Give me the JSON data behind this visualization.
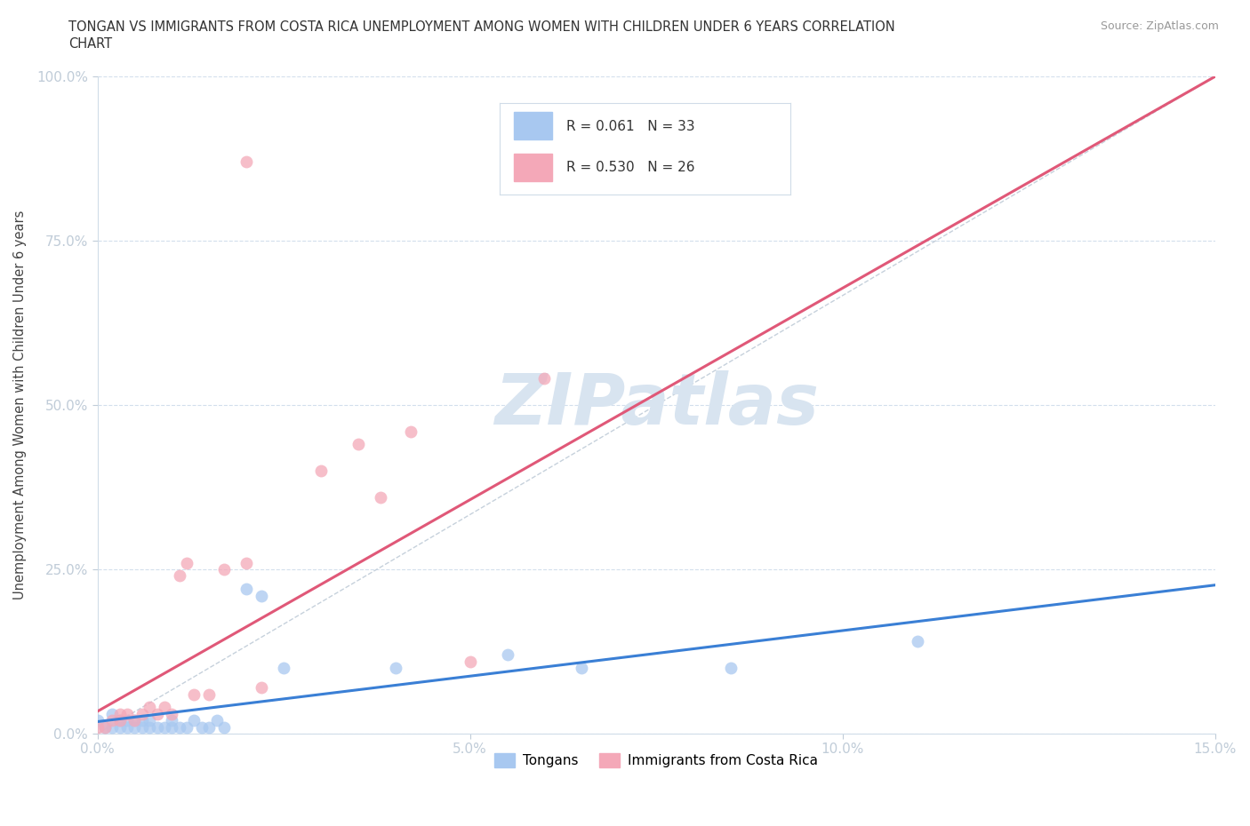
{
  "title_line1": "TONGAN VS IMMIGRANTS FROM COSTA RICA UNEMPLOYMENT AMONG WOMEN WITH CHILDREN UNDER 6 YEARS CORRELATION",
  "title_line2": "CHART",
  "source": "Source: ZipAtlas.com",
  "ylabel": "Unemployment Among Women with Children Under 6 years",
  "xlabel": "",
  "xlim": [
    0.0,
    0.15
  ],
  "ylim": [
    0.0,
    1.0
  ],
  "xticks": [
    0.0,
    0.05,
    0.1,
    0.15
  ],
  "xticklabels": [
    "0.0%",
    "5.0%",
    "10.0%",
    "15.0%"
  ],
  "yticks": [
    0.0,
    0.25,
    0.5,
    0.75,
    1.0
  ],
  "yticklabels": [
    "0.0%",
    "25.0%",
    "50.0%",
    "75.0%",
    "100.0%"
  ],
  "tongan_color": "#a8c8f0",
  "costa_rica_color": "#f4a8b8",
  "tongan_edge_color": "#7aaee0",
  "costa_rica_edge_color": "#e080a0",
  "tongan_line_color": "#3a7fd5",
  "costa_rica_line_color": "#e05878",
  "diag_line_color": "#c0ccd8",
  "R_tongan": 0.061,
  "N_tongan": 33,
  "R_costa_rica": 0.53,
  "N_costa_rica": 26,
  "watermark": "ZIPatlas",
  "watermark_color": "#d8e4f0",
  "tongan_x": [
    0.0,
    0.001,
    0.002,
    0.002,
    0.003,
    0.003,
    0.004,
    0.004,
    0.005,
    0.005,
    0.006,
    0.006,
    0.007,
    0.007,
    0.008,
    0.009,
    0.01,
    0.01,
    0.011,
    0.012,
    0.013,
    0.014,
    0.015,
    0.016,
    0.017,
    0.02,
    0.022,
    0.025,
    0.04,
    0.055,
    0.065,
    0.085,
    0.11
  ],
  "tongan_y": [
    0.02,
    0.01,
    0.01,
    0.03,
    0.01,
    0.02,
    0.01,
    0.02,
    0.01,
    0.02,
    0.01,
    0.02,
    0.01,
    0.02,
    0.01,
    0.01,
    0.01,
    0.02,
    0.01,
    0.01,
    0.02,
    0.01,
    0.01,
    0.02,
    0.01,
    0.22,
    0.21,
    0.1,
    0.1,
    0.12,
    0.1,
    0.1,
    0.14
  ],
  "costa_rica_x": [
    0.0,
    0.001,
    0.002,
    0.003,
    0.003,
    0.004,
    0.005,
    0.006,
    0.007,
    0.008,
    0.009,
    0.01,
    0.011,
    0.012,
    0.013,
    0.015,
    0.017,
    0.02,
    0.022,
    0.03,
    0.035,
    0.038,
    0.042,
    0.05,
    0.06,
    0.02
  ],
  "costa_rica_y": [
    0.01,
    0.01,
    0.02,
    0.02,
    0.03,
    0.03,
    0.02,
    0.03,
    0.04,
    0.03,
    0.04,
    0.03,
    0.24,
    0.26,
    0.06,
    0.06,
    0.25,
    0.26,
    0.07,
    0.4,
    0.44,
    0.36,
    0.46,
    0.11,
    0.54,
    0.87
  ]
}
